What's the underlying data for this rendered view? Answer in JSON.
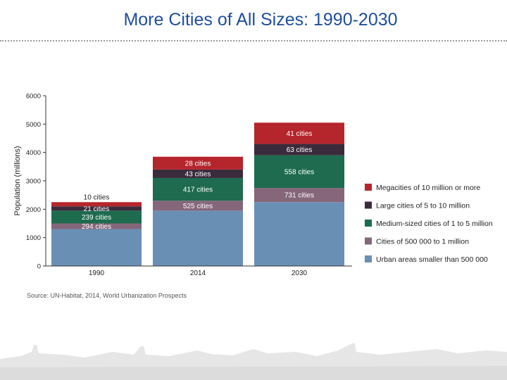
{
  "slide": {
    "title": "More Cities of All Sizes: 1990-2030",
    "source": "Source: UN-Habitat, 2014, World Urbanization Prospects"
  },
  "chart_data": {
    "type": "bar",
    "stacked": true,
    "ylabel": "Population (millions)",
    "ylim": [
      0,
      6000
    ],
    "yticks": [
      "0",
      "1000",
      "2000",
      "3000",
      "4000",
      "5000",
      "6000"
    ],
    "categories": [
      "1990",
      "2014",
      "2030"
    ],
    "legend_position": "right",
    "series": [
      {
        "name": "Urban areas smaller than 500 000",
        "color": "#6a8fb5",
        "values": [
          1300,
          1950,
          2250
        ],
        "labels": [
          "",
          "",
          ""
        ]
      },
      {
        "name": "Cities of 500 000 to 1 million",
        "color": "#85667a",
        "values": [
          200,
          350,
          500
        ],
        "labels": [
          "294 cities",
          "525 cities",
          "731 cities"
        ]
      },
      {
        "name": "Medium-sized cities of 1 to 5 million",
        "color": "#1e6b4f",
        "values": [
          450,
          800,
          1150
        ],
        "labels": [
          "239 cities",
          "417 cities",
          "558 cities"
        ]
      },
      {
        "name": "Large cities of 5 to 10 million",
        "color": "#3a2b3c",
        "values": [
          150,
          300,
          400
        ],
        "labels": [
          "21 cities",
          "43 cities",
          "63 cities"
        ]
      },
      {
        "name": "Megacities of 10 million or more",
        "color": "#b5252c",
        "values": [
          150,
          450,
          750
        ],
        "labels": [
          "10 cities",
          "28 cities",
          "41 cities"
        ]
      }
    ]
  }
}
